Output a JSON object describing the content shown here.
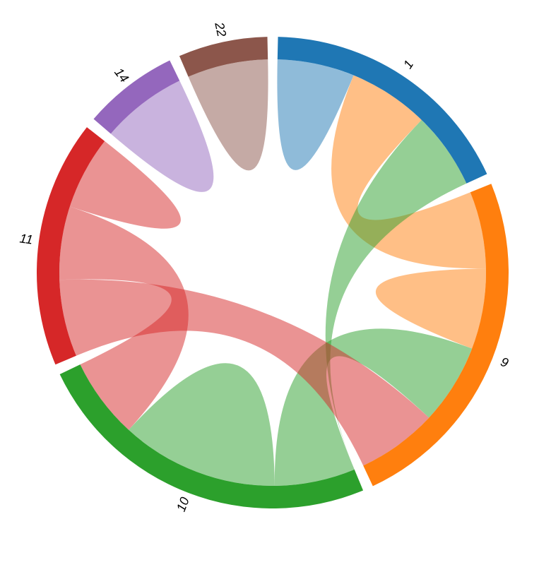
{
  "chart_data": {
    "type": "chord",
    "labels": [
      "1",
      "9",
      "10",
      "11",
      "14",
      "22"
    ],
    "colors": [
      "#1f77b4",
      "#ff7f0e",
      "#2ca02c",
      "#d62728",
      "#9467bd",
      "#8c564b"
    ],
    "matrix": [
      [
        21,
        22,
        21,
        0,
        0,
        0
      ],
      [
        21,
        22,
        22,
        22,
        0,
        0
      ],
      [
        0,
        22,
        43,
        22,
        0,
        0
      ],
      [
        0,
        21,
        20,
        20,
        0,
        0
      ],
      [
        0,
        0,
        0,
        0,
        23.5,
        0
      ],
      [
        0,
        0,
        0,
        0,
        0,
        22
      ]
    ]
  }
}
